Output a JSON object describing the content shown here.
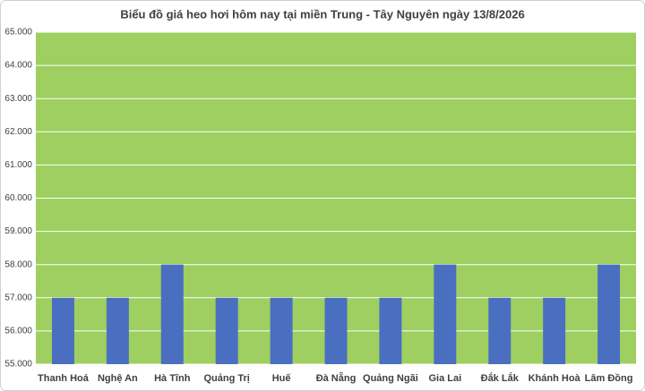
{
  "chart_data": {
    "type": "bar",
    "title": "Biểu đồ giá heo hơi hôm nay tại miền Trung - Tây Nguyên ngày 13/8/2026",
    "categories": [
      "Thanh Hoá",
      "Nghệ An",
      "Hà Tĩnh",
      "Quảng Trị",
      "Huế",
      "Đà Nẵng",
      "Quảng Ngãi",
      "Gia Lai",
      "Đắk Lắk",
      "Khánh Hoà",
      "Lâm Đồng"
    ],
    "values": [
      57000,
      57000,
      58000,
      57000,
      57000,
      57000,
      57000,
      58000,
      57000,
      57000,
      58000
    ],
    "color": "#4a6fc1",
    "plot_background": "#9ecf60",
    "ylim": [
      55000,
      65000
    ],
    "yticks": [
      {
        "value": 55000,
        "label": "55.000"
      },
      {
        "value": 56000,
        "label": "56.000"
      },
      {
        "value": 57000,
        "label": "57.000"
      },
      {
        "value": 58000,
        "label": "58.000"
      },
      {
        "value": 59000,
        "label": "59.000"
      },
      {
        "value": 60000,
        "label": "60.000"
      },
      {
        "value": 61000,
        "label": "61.000"
      },
      {
        "value": 62000,
        "label": "62.000"
      },
      {
        "value": 63000,
        "label": "63.000"
      },
      {
        "value": 64000,
        "label": "64.000"
      },
      {
        "value": 65000,
        "label": "65.000"
      }
    ],
    "grid": true
  }
}
